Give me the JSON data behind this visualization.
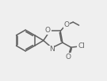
{
  "bg_color": "#efefef",
  "line_color": "#606060",
  "line_width": 1.1,
  "text_color": "#606060",
  "font_size": 6.0,
  "fig_width": 1.35,
  "fig_height": 1.03,
  "dpi": 100,
  "xlim": [
    0,
    10
  ],
  "ylim": [
    0,
    7.5
  ]
}
